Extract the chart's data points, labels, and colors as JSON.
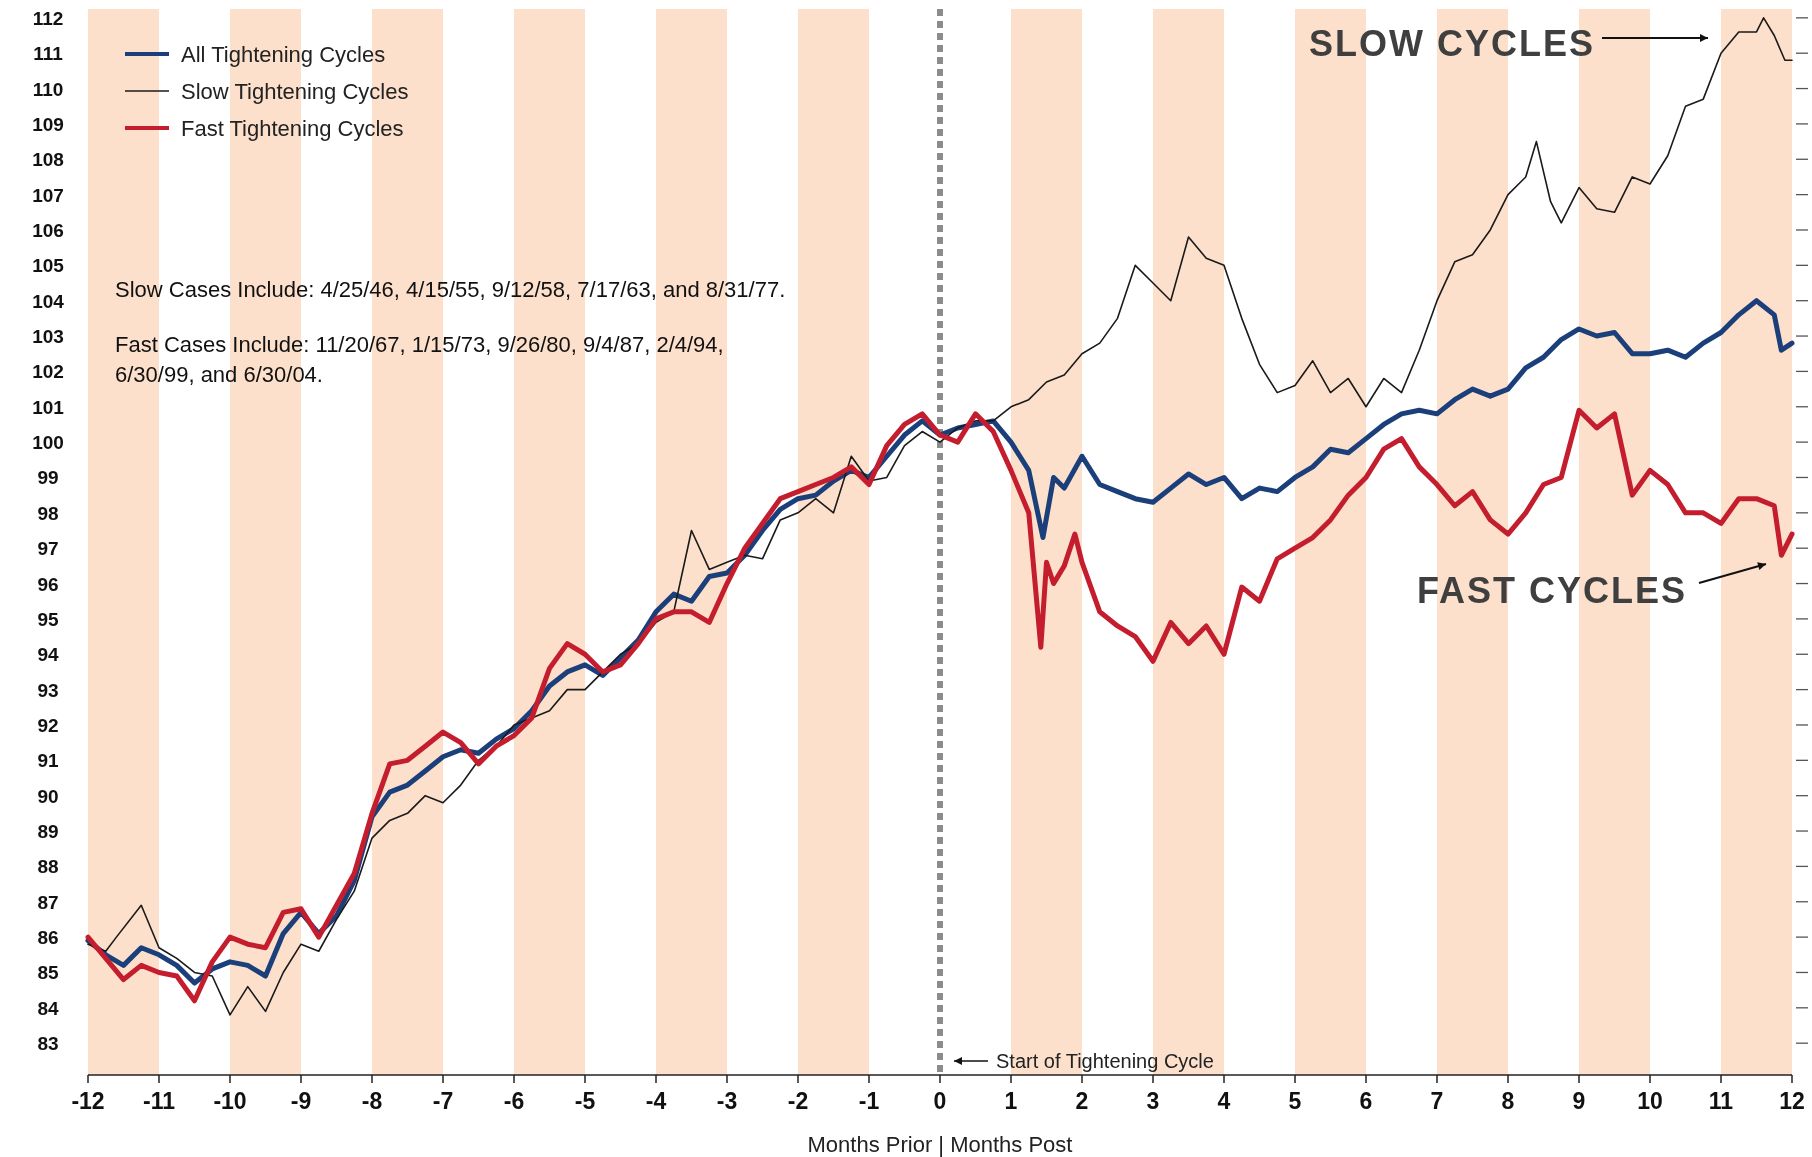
{
  "chart_data": {
    "type": "line",
    "xlabel": "Months Prior | Months Post",
    "xlim": [
      -12,
      12
    ],
    "xticks": [
      -12,
      -11,
      -10,
      -9,
      -8,
      -7,
      -6,
      -5,
      -4,
      -3,
      -2,
      -1,
      0,
      1,
      2,
      3,
      4,
      5,
      6,
      7,
      8,
      9,
      10,
      11,
      12
    ],
    "ylim": [
      82.1,
      112.25
    ],
    "yticks": [
      83,
      84,
      85,
      86,
      87,
      88,
      89,
      90,
      91,
      92,
      93,
      94,
      95,
      96,
      97,
      98,
      99,
      100,
      101,
      102,
      103,
      104,
      105,
      106,
      107,
      108,
      109,
      110,
      111,
      112
    ],
    "grid": false,
    "legend": "top left",
    "line_style": "solid",
    "bands": [
      {
        "axis": "x",
        "from": -12,
        "to": -11,
        "color": "#fde0cb"
      },
      {
        "axis": "x",
        "from": -10,
        "to": -9,
        "color": "#fde0cb"
      },
      {
        "axis": "x",
        "from": -8,
        "to": -7,
        "color": "#fde0cb"
      },
      {
        "axis": "x",
        "from": -6,
        "to": -5,
        "color": "#fde0cb"
      },
      {
        "axis": "x",
        "from": -4,
        "to": -3,
        "color": "#fde0cb"
      },
      {
        "axis": "x",
        "from": -2,
        "to": -1,
        "color": "#fde0cb"
      },
      {
        "axis": "x",
        "from": 1,
        "to": 2,
        "color": "#fde0cb"
      },
      {
        "axis": "x",
        "from": 3,
        "to": 4,
        "color": "#fde0cb"
      },
      {
        "axis": "x",
        "from": 5,
        "to": 6,
        "color": "#fde0cb"
      },
      {
        "axis": "x",
        "from": 7,
        "to": 8,
        "color": "#fde0cb"
      },
      {
        "axis": "x",
        "from": 9,
        "to": 10,
        "color": "#fde0cb"
      },
      {
        "axis": "x",
        "from": 11,
        "to": 12,
        "color": "#fde0cb"
      }
    ],
    "ref_lines": [
      {
        "axis": "x",
        "value": 0,
        "label": "Start of Tightening Cycle",
        "color": "#8c8c8c",
        "line_style": "dotted"
      }
    ],
    "annotations": [
      "Slow Cases Include: 4/25/46, 4/15/55, 9/12/58, 7/17/63, and 8/31/77.",
      "Fast Cases Include: 11/20/67, 1/15/73, 9/26/80, 9/4/87, 2/4/94, 6/30/99, and 6/30/04.",
      "SLOW CYCLES",
      "FAST CYCLES"
    ],
    "series": [
      {
        "name": "All Tightening Cycles",
        "color": "#1b3f7a",
        "x": [
          -12,
          -11.75,
          -11.5,
          -11.25,
          -11,
          -10.75,
          -10.5,
          -10.25,
          -10,
          -9.75,
          -9.5,
          -9.25,
          -9,
          -8.75,
          -8.5,
          -8.25,
          -8,
          -7.75,
          -7.5,
          -7.25,
          -7,
          -6.75,
          -6.5,
          -6.25,
          -6,
          -5.75,
          -5.5,
          -5.25,
          -5,
          -4.75,
          -4.5,
          -4.25,
          -4,
          -3.75,
          -3.5,
          -3.25,
          -3,
          -2.75,
          -2.5,
          -2.25,
          -2,
          -1.75,
          -1.5,
          -1.25,
          -1,
          -0.75,
          -0.5,
          -0.25,
          0,
          0.25,
          0.5,
          0.75,
          1,
          1.25,
          1.45,
          1.6,
          1.75,
          2,
          2.25,
          2.5,
          2.75,
          3,
          3.25,
          3.5,
          3.75,
          4,
          4.25,
          4.5,
          4.75,
          5,
          5.25,
          5.5,
          5.75,
          6,
          6.25,
          6.5,
          6.75,
          7,
          7.25,
          7.5,
          7.75,
          8,
          8.25,
          8.5,
          8.75,
          9,
          9.25,
          9.5,
          9.75,
          10,
          10.25,
          10.5,
          10.75,
          11,
          11.25,
          11.5,
          11.75,
          11.85,
          12
        ],
        "values": [
          85.9,
          85.5,
          85.2,
          85.7,
          85.5,
          85.2,
          84.7,
          85.1,
          85.3,
          85.2,
          84.9,
          86.1,
          86.7,
          86.1,
          86.6,
          87.6,
          89.4,
          90.1,
          90.3,
          90.7,
          91.1,
          91.3,
          91.2,
          91.6,
          91.9,
          92.4,
          93.1,
          93.5,
          93.7,
          93.4,
          93.9,
          94.4,
          95.2,
          95.7,
          95.5,
          96.2,
          96.3,
          96.8,
          97.5,
          98.1,
          98.4,
          98.5,
          98.9,
          99.2,
          99.0,
          99.6,
          100.2,
          100.6,
          100.2,
          100.4,
          100.5,
          100.6,
          100.0,
          99.2,
          97.3,
          99.0,
          98.7,
          99.6,
          98.8,
          98.6,
          98.4,
          98.3,
          98.7,
          99.1,
          98.8,
          99.0,
          98.4,
          98.7,
          98.6,
          99.0,
          99.3,
          99.8,
          99.7,
          100.1,
          100.5,
          100.8,
          100.9,
          100.8,
          101.2,
          101.5,
          101.3,
          101.5,
          102.1,
          102.4,
          102.9,
          103.2,
          103.0,
          103.1,
          102.5,
          102.5,
          102.6,
          102.4,
          102.8,
          103.1,
          103.6,
          104.0,
          103.6,
          102.6,
          102.8
        ]
      },
      {
        "name": "Slow Tightening Cycles",
        "color": "#1a1a1a",
        "x": [
          -12,
          -11.75,
          -11.6,
          -11.25,
          -11,
          -10.75,
          -10.5,
          -10.25,
          -10,
          -9.75,
          -9.5,
          -9.25,
          -9,
          -8.75,
          -8.5,
          -8.25,
          -8,
          -7.75,
          -7.5,
          -7.25,
          -7,
          -6.75,
          -6.5,
          -6.25,
          -6,
          -5.75,
          -5.5,
          -5.25,
          -5,
          -4.75,
          -4.5,
          -4.25,
          -4,
          -3.75,
          -3.5,
          -3.25,
          -3,
          -2.75,
          -2.5,
          -2.25,
          -2,
          -1.75,
          -1.5,
          -1.25,
          -1,
          -0.75,
          -0.5,
          -0.25,
          0,
          0.25,
          0.5,
          0.75,
          1,
          1.25,
          1.5,
          1.75,
          2,
          2.25,
          2.5,
          2.75,
          3,
          3.25,
          3.5,
          3.75,
          4,
          4.25,
          4.5,
          4.75,
          5,
          5.25,
          5.5,
          5.75,
          6,
          6.25,
          6.5,
          6.75,
          7,
          7.25,
          7.5,
          7.75,
          8,
          8.25,
          8.4,
          8.6,
          8.75,
          9,
          9.25,
          9.5,
          9.75,
          10,
          10.25,
          10.5,
          10.75,
          11,
          11.25,
          11.5,
          11.6,
          11.75,
          11.9,
          12
        ],
        "values": [
          85.8,
          85.6,
          86.0,
          86.9,
          85.7,
          85.4,
          85.0,
          84.9,
          83.8,
          84.6,
          83.9,
          85.0,
          85.8,
          85.6,
          86.5,
          87.3,
          88.8,
          89.3,
          89.5,
          90.0,
          89.8,
          90.3,
          91.0,
          91.4,
          92.0,
          92.2,
          92.4,
          93.0,
          93.0,
          93.5,
          94.0,
          94.3,
          94.9,
          95.2,
          97.5,
          96.4,
          96.6,
          96.8,
          96.7,
          97.8,
          98.0,
          98.4,
          98.0,
          99.6,
          98.9,
          99.0,
          99.9,
          100.3,
          100.0,
          100.4,
          100.6,
          100.6,
          101.0,
          101.2,
          101.7,
          101.9,
          102.5,
          102.8,
          103.5,
          105.0,
          104.5,
          104.0,
          105.8,
          105.2,
          105.0,
          103.5,
          102.2,
          101.4,
          101.6,
          102.3,
          101.4,
          101.8,
          101.0,
          101.8,
          101.4,
          102.6,
          104.0,
          105.1,
          105.3,
          106.0,
          107.0,
          107.5,
          108.5,
          106.8,
          106.2,
          107.2,
          106.6,
          106.5,
          107.5,
          107.3,
          108.1,
          109.5,
          109.7,
          111.0,
          111.6,
          111.6,
          112.0,
          111.5,
          110.8,
          110.8
        ]
      },
      {
        "name": "Fast Tightening Cycles",
        "color": "#c41e2e",
        "x": [
          -12,
          -11.75,
          -11.5,
          -11.25,
          -11,
          -10.75,
          -10.5,
          -10.25,
          -10,
          -9.75,
          -9.5,
          -9.25,
          -9,
          -8.75,
          -8.5,
          -8.25,
          -8,
          -7.75,
          -7.5,
          -7.25,
          -7,
          -6.75,
          -6.5,
          -6.25,
          -6,
          -5.75,
          -5.5,
          -5.25,
          -5,
          -4.75,
          -4.5,
          -4.25,
          -4,
          -3.75,
          -3.5,
          -3.25,
          -3,
          -2.75,
          -2.5,
          -2.25,
          -2,
          -1.75,
          -1.5,
          -1.25,
          -1,
          -0.75,
          -0.5,
          -0.25,
          0,
          0.25,
          0.5,
          0.75,
          1,
          1.25,
          1.42,
          1.5,
          1.6,
          1.75,
          1.9,
          2,
          2.25,
          2.5,
          2.75,
          3,
          3.25,
          3.5,
          3.75,
          4,
          4.25,
          4.5,
          4.75,
          5,
          5.25,
          5.5,
          5.75,
          6,
          6.25,
          6.5,
          6.75,
          7,
          7.25,
          7.5,
          7.75,
          8,
          8.25,
          8.5,
          8.75,
          9,
          9.25,
          9.5,
          9.75,
          10,
          10.25,
          10.5,
          10.75,
          11,
          11.25,
          11.5,
          11.75,
          11.85,
          12
        ],
        "values": [
          86.0,
          85.4,
          84.8,
          85.2,
          85.0,
          84.9,
          84.2,
          85.3,
          86.0,
          85.8,
          85.7,
          86.7,
          86.8,
          86.0,
          86.9,
          87.8,
          89.5,
          90.9,
          91.0,
          91.4,
          91.8,
          91.5,
          90.9,
          91.4,
          91.7,
          92.2,
          93.6,
          94.3,
          94.0,
          93.5,
          93.7,
          94.3,
          95.0,
          95.2,
          95.2,
          94.9,
          96.0,
          97.0,
          97.7,
          98.4,
          98.6,
          98.8,
          99.0,
          99.3,
          98.8,
          99.9,
          100.5,
          100.8,
          100.2,
          100.0,
          100.8,
          100.3,
          99.2,
          98.0,
          94.2,
          96.6,
          96.0,
          96.5,
          97.4,
          96.6,
          95.2,
          94.8,
          94.5,
          93.8,
          94.9,
          94.3,
          94.8,
          94.0,
          95.9,
          95.5,
          96.7,
          97.0,
          97.3,
          97.8,
          98.5,
          99.0,
          99.8,
          100.1,
          99.3,
          98.8,
          98.2,
          98.6,
          97.8,
          97.4,
          98.0,
          98.8,
          99.0,
          100.9,
          100.4,
          100.8,
          98.5,
          99.2,
          98.8,
          98.0,
          98.0,
          97.7,
          98.4,
          98.4,
          98.2,
          96.8,
          97.4
        ]
      }
    ]
  }
}
